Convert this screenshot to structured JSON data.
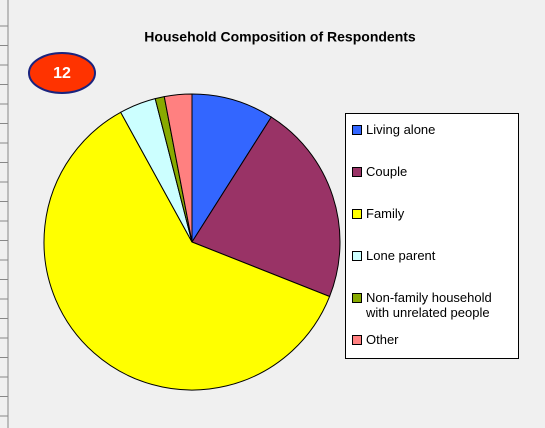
{
  "badge": "12",
  "chart_data": {
    "type": "pie",
    "title": "Household Composition of Respondents",
    "categories": [
      "Living alone",
      "Couple",
      "Family",
      "Lone parent",
      "Non-family household with unrelated people",
      "Other"
    ],
    "values": [
      9,
      22,
      61,
      4,
      1,
      3
    ],
    "colors": [
      "#3366ff",
      "#993366",
      "#ffff00",
      "#ccffff",
      "#88aa00",
      "#ff8080"
    ],
    "legend": "right"
  }
}
